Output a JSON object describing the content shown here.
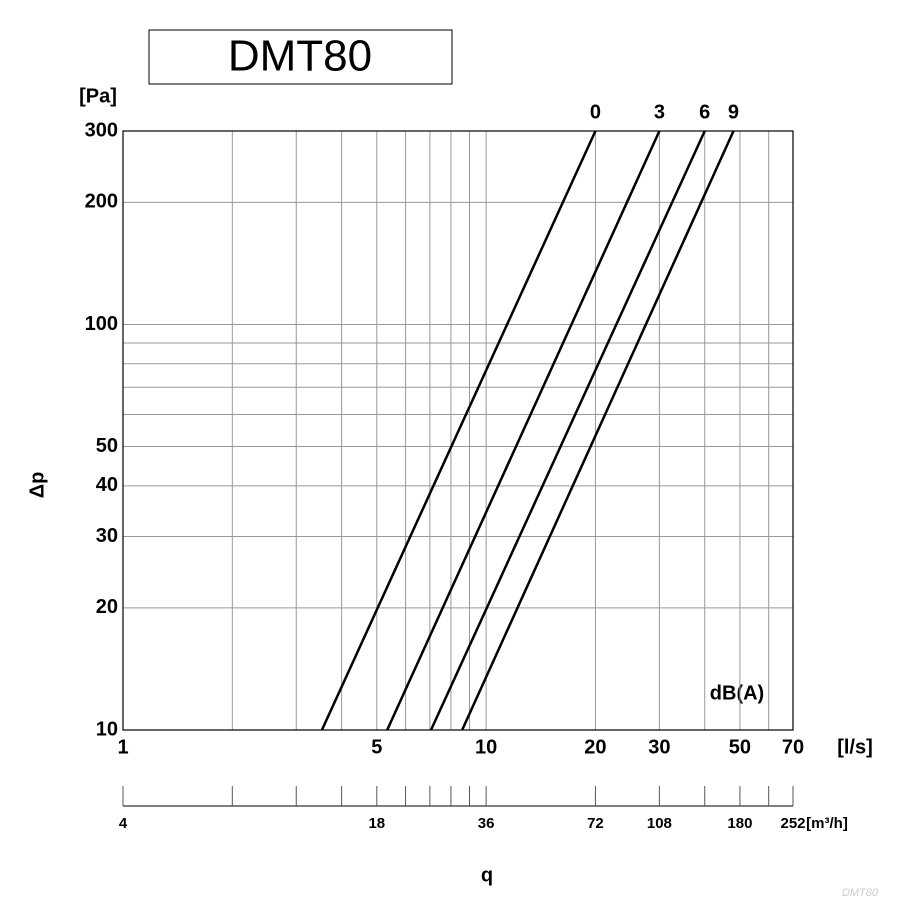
{
  "chart_data": {
    "type": "line",
    "title": "DMT80",
    "watermark": "DMT80",
    "x_unit": "[l/s]",
    "y_unit": "[Pa]",
    "y_title": "Δp",
    "x_title": "q",
    "x2_unit": "[m³/h]",
    "annotation": "dB(A)",
    "log_x": true,
    "log_y": true,
    "grid": true,
    "xlim": [
      1,
      70
    ],
    "xticks": [
      1,
      5,
      10,
      20,
      30,
      50,
      70
    ],
    "xminor": [
      2,
      3,
      4,
      6,
      7,
      8,
      9,
      40,
      60
    ],
    "ylim": [
      10,
      300
    ],
    "yticks": [
      10,
      20,
      30,
      40,
      50,
      100,
      200,
      300
    ],
    "yminor": [
      60,
      70,
      80,
      90
    ],
    "x2lim": [
      3.6,
      252
    ],
    "x2ticks": [
      {
        "value": 3.6,
        "label": "4"
      },
      18,
      36,
      72,
      108,
      180,
      252
    ],
    "x2minor": [
      7.2,
      10.8,
      14.4,
      21.6,
      25.2,
      28.8,
      32.4,
      144,
      216
    ],
    "series": [
      {
        "name": "0",
        "color": "#000000",
        "x": [
          3.53,
          20
        ],
        "values": [
          10,
          300
        ]
      },
      {
        "name": "3",
        "color": "#000000",
        "x": [
          5.34,
          30
        ],
        "values": [
          10,
          300
        ]
      },
      {
        "name": "6",
        "color": "#000000",
        "x": [
          7.05,
          40
        ],
        "values": [
          10,
          300
        ]
      },
      {
        "name": "9",
        "color": "#000000",
        "x": [
          8.59,
          48
        ],
        "values": [
          10,
          300
        ]
      }
    ]
  }
}
